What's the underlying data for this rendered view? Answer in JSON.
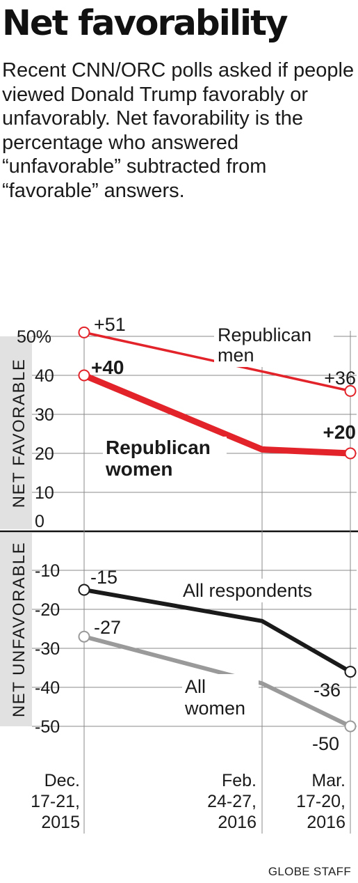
{
  "title": "Net favorability",
  "intro": "Recent CNN/ORC polls asked if people viewed Donald Trump favorably or unfavorably. Net favorability is the percentage who answered “unfavorable” subtracted from “favorable” answers.",
  "credit": "GLOBE STAFF",
  "colors": {
    "red": "#e3232a",
    "black": "#1a1a1a",
    "gray": "#9a9a9a",
    "grid": "#888888",
    "band": "#e1e1e1"
  },
  "chart_data": {
    "type": "line",
    "x": [
      "Dec. 17-21, 2015",
      "Feb. 24-27, 2016",
      "Mar. 17-20, 2016"
    ],
    "x_label_lines": [
      [
        "Dec.",
        "17-21,",
        "2015"
      ],
      [
        "Feb.",
        "24-27,",
        "2016"
      ],
      [
        "Mar.",
        "17-20,",
        "2016"
      ]
    ],
    "ylim": [
      -50,
      50
    ],
    "yticks": [
      50,
      40,
      30,
      20,
      10,
      0,
      -10,
      -20,
      -30,
      -40,
      -50
    ],
    "ytick_labels": [
      "50%",
      "40",
      "30",
      "20",
      "10",
      "0",
      "-10",
      "-20",
      "-30",
      "-40",
      "-50"
    ],
    "band_labels": {
      "positive": "NET FAVORABLE",
      "negative": "NET UNFAVORABLE"
    },
    "grid": true,
    "series": [
      {
        "name": "Republican men",
        "label_lines": [
          "Republican",
          "men"
        ],
        "values": [
          51,
          41,
          36
        ],
        "endpoint_labels": [
          "+51",
          "+36"
        ],
        "style": "thin-red"
      },
      {
        "name": "Republican women",
        "label_lines": [
          "Republican",
          "women"
        ],
        "values": [
          40,
          21,
          20
        ],
        "endpoint_labels": [
          "+40",
          "+20"
        ],
        "style": "thick-red"
      },
      {
        "name": "All respondents",
        "label_lines": [
          "All respondents"
        ],
        "values": [
          -15,
          -23,
          -36
        ],
        "endpoint_labels": [
          "-15",
          "-36"
        ],
        "style": "black"
      },
      {
        "name": "All women",
        "label_lines": [
          "All",
          "women"
        ],
        "values": [
          -27,
          -39,
          -50
        ],
        "endpoint_labels": [
          "-27",
          "-50"
        ],
        "style": "gray"
      }
    ]
  }
}
